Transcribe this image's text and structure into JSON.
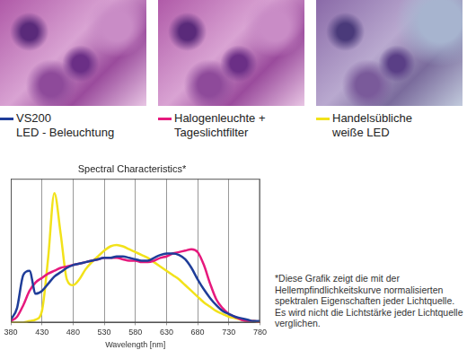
{
  "chart_data": {
    "type": "line",
    "title": "Spectral Characteristics*",
    "x_label": "Wavelength [nm]",
    "x": [
      380,
      390,
      400,
      410,
      420,
      430,
      440,
      450,
      460,
      470,
      480,
      490,
      500,
      510,
      520,
      530,
      540,
      550,
      560,
      570,
      580,
      590,
      600,
      610,
      620,
      630,
      640,
      650,
      660,
      670,
      680,
      690,
      700,
      710,
      720,
      730,
      740,
      750,
      760,
      770,
      780
    ],
    "series": [
      {
        "name": "VS200\nLED - Beleuchtung",
        "color": "#1f3d99",
        "values": [
          0.02,
          0.1,
          0.33,
          0.36,
          0.2,
          0.22,
          0.27,
          0.32,
          0.35,
          0.38,
          0.4,
          0.41,
          0.42,
          0.43,
          0.44,
          0.45,
          0.45,
          0.46,
          0.46,
          0.45,
          0.44,
          0.43,
          0.43,
          0.45,
          0.47,
          0.48,
          0.48,
          0.47,
          0.44,
          0.38,
          0.3,
          0.23,
          0.17,
          0.12,
          0.08,
          0.06,
          0.04,
          0.03,
          0.02,
          0.01,
          0.01
        ]
      },
      {
        "name": "Halogenleuchte +\nTageslichtfilter",
        "color": "#e6197d",
        "values": [
          0.01,
          0.04,
          0.12,
          0.22,
          0.28,
          0.31,
          0.34,
          0.36,
          0.38,
          0.39,
          0.4,
          0.41,
          0.42,
          0.43,
          0.44,
          0.45,
          0.45,
          0.45,
          0.44,
          0.43,
          0.43,
          0.42,
          0.42,
          0.43,
          0.45,
          0.46,
          0.48,
          0.49,
          0.5,
          0.51,
          0.49,
          0.4,
          0.27,
          0.16,
          0.1,
          0.06,
          0.04,
          0.02,
          0.01,
          0.01,
          0.0
        ]
      },
      {
        "name": "Handelsübliche\nweiße LED",
        "color": "#f2e21a",
        "values": [
          0,
          0,
          0,
          0.01,
          0.02,
          0.08,
          0.45,
          0.9,
          0.62,
          0.3,
          0.26,
          0.3,
          0.37,
          0.42,
          0.46,
          0.5,
          0.53,
          0.54,
          0.53,
          0.51,
          0.49,
          0.47,
          0.45,
          0.42,
          0.39,
          0.36,
          0.33,
          0.3,
          0.26,
          0.22,
          0.18,
          0.14,
          0.11,
          0.08,
          0.06,
          0.04,
          0.03,
          0.02,
          0.01,
          0.01,
          0
        ]
      }
    ],
    "xlim": [
      380,
      780
    ],
    "xticks": [
      380,
      430,
      480,
      530,
      580,
      630,
      680,
      730,
      780
    ],
    "ylim": [
      0,
      1
    ],
    "tick_labels": "x",
    "grid": true
  },
  "footnote": "*Diese Grafik zeigt die mit der Hellempfindlichkeitskurve normalisierten spektralen Eigenschaften jeder Lichtquelle. Es wird nicht die Lichtstärke jeder Lichtquelle verglichen."
}
